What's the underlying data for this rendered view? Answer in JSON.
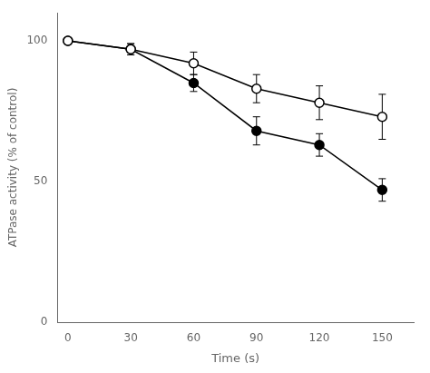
{
  "chart_data": {
    "type": "line",
    "xlabel": "Time (s)",
    "ylabel": "ATPase activity (% of control)",
    "x": [
      0,
      30,
      60,
      90,
      120,
      150
    ],
    "series": [
      {
        "color": "#000000",
        "marker": "circle_open",
        "values": [
          100,
          97,
          92,
          83,
          78,
          73
        ],
        "yerr": [
          0,
          2,
          4,
          5,
          6,
          8
        ]
      },
      {
        "color": "#000000",
        "marker": "circle",
        "values": [
          100,
          97,
          85,
          68,
          63,
          47
        ],
        "yerr": [
          0,
          2,
          3,
          5,
          4,
          4
        ]
      }
    ],
    "xlim": [
      -5,
      165
    ],
    "ylim": [
      0,
      110
    ],
    "xticks": [
      0,
      30,
      60,
      90,
      120,
      150
    ],
    "yticks": [
      0,
      50,
      100
    ],
    "grid": false
  }
}
